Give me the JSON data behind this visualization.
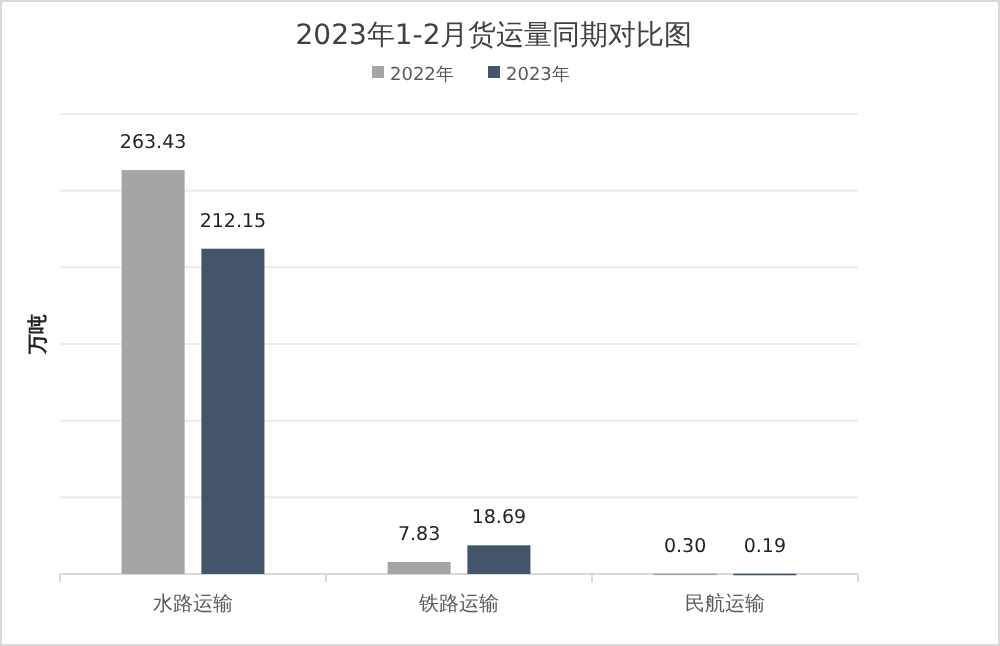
{
  "chart_data": {
    "type": "bar",
    "title": "2023年1-2月货运量同期对比图",
    "ylabel": "万吨",
    "categories": [
      "水路运输",
      "铁路运输",
      "民航运输"
    ],
    "series": [
      {
        "name": "2022年",
        "color": "#a5a5a5",
        "values": [
          263.43,
          7.83,
          0.3
        ],
        "value_labels": [
          "263.43",
          "7.83",
          "0.30"
        ]
      },
      {
        "name": "2023年",
        "color": "#44546a",
        "values": [
          212.15,
          18.69,
          0.19
        ],
        "value_labels": [
          "212.15",
          "18.69",
          "0.19"
        ]
      }
    ],
    "ylim": [
      0,
      300
    ],
    "yticks": [
      {
        "value": 0,
        "label": null
      },
      {
        "value": 50,
        "label": null
      },
      {
        "value": 100,
        "label": null
      },
      {
        "value": 150,
        "label": null
      },
      {
        "value": 200,
        "label": null
      },
      {
        "value": 250,
        "label": null
      },
      {
        "value": 300,
        "label": null
      }
    ],
    "grid": "y",
    "legend": "top",
    "tick_labels": "x"
  }
}
